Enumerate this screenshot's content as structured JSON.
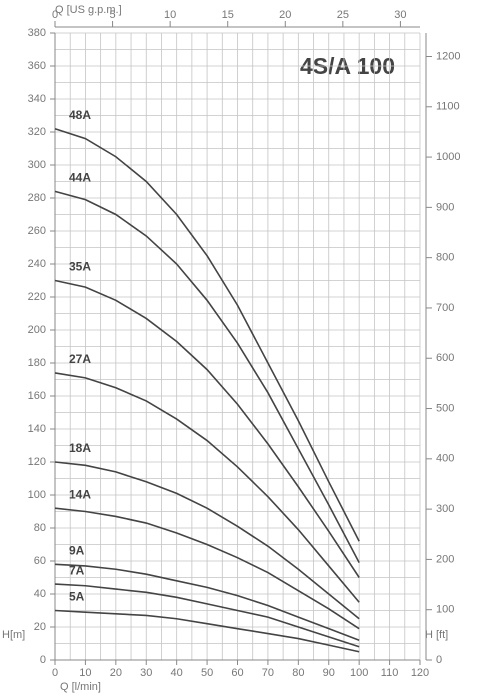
{
  "chart_data": {
    "type": "line",
    "title": "4S/A 100",
    "x_label": "Q [l/min]",
    "x2_label": "Q [US g.p.m.]",
    "y_label": "H[m]",
    "y2_label": "H [ft]",
    "x": [
      0,
      10,
      20,
      30,
      40,
      50,
      60,
      70,
      80,
      90,
      100
    ],
    "xlim": [
      0,
      120
    ],
    "xticks": [
      0,
      10,
      20,
      30,
      40,
      50,
      60,
      70,
      80,
      90,
      100,
      110,
      120
    ],
    "xgrid": [
      5,
      15,
      25,
      35,
      45,
      55,
      65,
      75,
      85,
      95,
      105,
      115
    ],
    "x2lim": [
      0,
      31.7
    ],
    "x2ticks": [
      0,
      5,
      10,
      15,
      20,
      25,
      30
    ],
    "ylim": [
      0,
      380
    ],
    "yticks": [
      0,
      20,
      40,
      60,
      80,
      100,
      120,
      140,
      160,
      180,
      200,
      220,
      240,
      260,
      280,
      300,
      320,
      340,
      360,
      380
    ],
    "ygrid": [
      10,
      30,
      50,
      70,
      90,
      110,
      130,
      150,
      170,
      190,
      210,
      230,
      250,
      270,
      290,
      310,
      330,
      350,
      370
    ],
    "y2lim": [
      0,
      1246.7
    ],
    "y2ticks": [
      0,
      100,
      200,
      300,
      400,
      500,
      600,
      700,
      800,
      900,
      1000,
      1100,
      1200
    ],
    "grid": true,
    "color": "#444444",
    "series": [
      {
        "name": "48A",
        "values": [
          322,
          316,
          305,
          290,
          270,
          245,
          215,
          180,
          145,
          108,
          72
        ]
      },
      {
        "name": "44A",
        "values": [
          284,
          279,
          270,
          257,
          240,
          218,
          192,
          162,
          128,
          94,
          59
        ]
      },
      {
        "name": "35A",
        "values": [
          230,
          226,
          218,
          207,
          193,
          176,
          155,
          131,
          105,
          78,
          50
        ]
      },
      {
        "name": "27A",
        "values": [
          174,
          171,
          165,
          157,
          146,
          133,
          117,
          99,
          79,
          57,
          35
        ]
      },
      {
        "name": "18A",
        "values": [
          120,
          118,
          114,
          108,
          101,
          92,
          81,
          69,
          55,
          40,
          25
        ]
      },
      {
        "name": "14A",
        "values": [
          92,
          90,
          87,
          83,
          77,
          70,
          62,
          53,
          42,
          31,
          19
        ]
      },
      {
        "name": "9A",
        "values": [
          58,
          57,
          55,
          52,
          48,
          44,
          39,
          33,
          26,
          19,
          12
        ]
      },
      {
        "name": "7A",
        "values": [
          46,
          45,
          43,
          41,
          38,
          34,
          30,
          26,
          20,
          14,
          8
        ]
      },
      {
        "name": "5A",
        "values": [
          30,
          29,
          28,
          27,
          25,
          22,
          19,
          16,
          13,
          9,
          5
        ]
      }
    ]
  }
}
